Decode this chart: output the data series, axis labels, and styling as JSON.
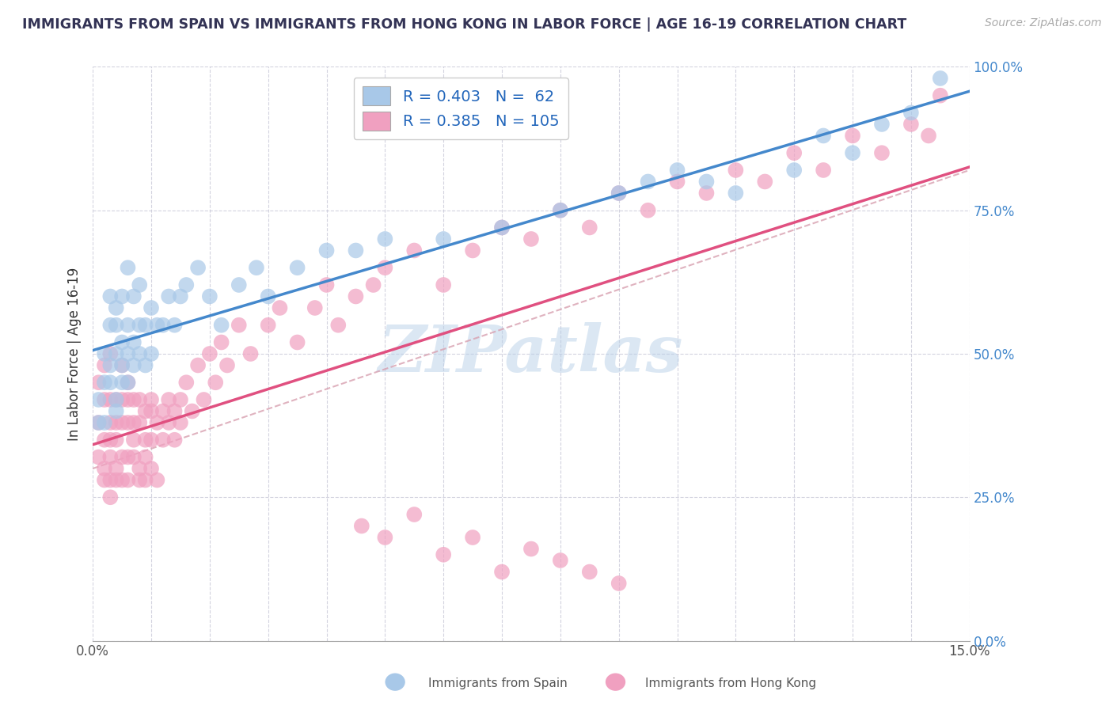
{
  "title": "IMMIGRANTS FROM SPAIN VS IMMIGRANTS FROM HONG KONG IN LABOR FORCE | AGE 16-19 CORRELATION CHART",
  "source": "Source: ZipAtlas.com",
  "ylabel": "In Labor Force | Age 16-19",
  "legend_label1": "Immigrants from Spain",
  "legend_label2": "Immigrants from Hong Kong",
  "R1": 0.403,
  "N1": 62,
  "R2": 0.385,
  "N2": 105,
  "xlim": [
    0.0,
    0.15
  ],
  "ylim": [
    0.0,
    1.0
  ],
  "color_spain": "#a8c8e8",
  "color_hk": "#f0a0c0",
  "color_spain_line": "#4488cc",
  "color_hk_line": "#e05080",
  "color_diag": "#e0a0b0",
  "watermark": "ZIPatlas",
  "spain_x": [
    0.001,
    0.001,
    0.002,
    0.002,
    0.002,
    0.003,
    0.003,
    0.003,
    0.003,
    0.004,
    0.004,
    0.004,
    0.004,
    0.004,
    0.005,
    0.005,
    0.005,
    0.005,
    0.006,
    0.006,
    0.006,
    0.006,
    0.007,
    0.007,
    0.007,
    0.008,
    0.008,
    0.008,
    0.009,
    0.009,
    0.01,
    0.01,
    0.011,
    0.012,
    0.013,
    0.014,
    0.015,
    0.016,
    0.018,
    0.02,
    0.022,
    0.025,
    0.028,
    0.03,
    0.035,
    0.04,
    0.045,
    0.05,
    0.06,
    0.07,
    0.08,
    0.09,
    0.095,
    0.1,
    0.105,
    0.11,
    0.12,
    0.125,
    0.13,
    0.135,
    0.14,
    0.145
  ],
  "spain_y": [
    0.42,
    0.38,
    0.45,
    0.38,
    0.5,
    0.48,
    0.55,
    0.45,
    0.6,
    0.42,
    0.5,
    0.55,
    0.4,
    0.58,
    0.48,
    0.52,
    0.6,
    0.45,
    0.5,
    0.55,
    0.65,
    0.45,
    0.52,
    0.6,
    0.48,
    0.55,
    0.62,
    0.5,
    0.55,
    0.48,
    0.5,
    0.58,
    0.55,
    0.55,
    0.6,
    0.55,
    0.6,
    0.62,
    0.65,
    0.6,
    0.55,
    0.62,
    0.65,
    0.6,
    0.65,
    0.68,
    0.68,
    0.7,
    0.7,
    0.72,
    0.75,
    0.78,
    0.8,
    0.82,
    0.8,
    0.78,
    0.82,
    0.88,
    0.85,
    0.9,
    0.92,
    0.98
  ],
  "hk_x": [
    0.001,
    0.001,
    0.001,
    0.002,
    0.002,
    0.002,
    0.002,
    0.002,
    0.003,
    0.003,
    0.003,
    0.003,
    0.003,
    0.003,
    0.003,
    0.004,
    0.004,
    0.004,
    0.004,
    0.004,
    0.005,
    0.005,
    0.005,
    0.005,
    0.005,
    0.006,
    0.006,
    0.006,
    0.006,
    0.006,
    0.007,
    0.007,
    0.007,
    0.007,
    0.008,
    0.008,
    0.008,
    0.008,
    0.009,
    0.009,
    0.009,
    0.009,
    0.01,
    0.01,
    0.01,
    0.01,
    0.011,
    0.011,
    0.012,
    0.012,
    0.013,
    0.013,
    0.014,
    0.014,
    0.015,
    0.015,
    0.016,
    0.017,
    0.018,
    0.019,
    0.02,
    0.021,
    0.022,
    0.023,
    0.025,
    0.027,
    0.03,
    0.032,
    0.035,
    0.038,
    0.04,
    0.042,
    0.045,
    0.048,
    0.05,
    0.055,
    0.06,
    0.065,
    0.07,
    0.075,
    0.08,
    0.085,
    0.09,
    0.095,
    0.1,
    0.105,
    0.11,
    0.115,
    0.12,
    0.125,
    0.13,
    0.135,
    0.14,
    0.143,
    0.145,
    0.046,
    0.05,
    0.055,
    0.06,
    0.065,
    0.07,
    0.075,
    0.08,
    0.085,
    0.09
  ],
  "hk_y": [
    0.32,
    0.38,
    0.45,
    0.28,
    0.35,
    0.42,
    0.3,
    0.48,
    0.25,
    0.32,
    0.38,
    0.42,
    0.35,
    0.28,
    0.5,
    0.3,
    0.38,
    0.42,
    0.35,
    0.28,
    0.32,
    0.38,
    0.42,
    0.28,
    0.48,
    0.32,
    0.38,
    0.42,
    0.28,
    0.45,
    0.32,
    0.38,
    0.42,
    0.35,
    0.3,
    0.38,
    0.42,
    0.28,
    0.35,
    0.4,
    0.32,
    0.28,
    0.35,
    0.4,
    0.42,
    0.3,
    0.38,
    0.28,
    0.4,
    0.35,
    0.42,
    0.38,
    0.4,
    0.35,
    0.42,
    0.38,
    0.45,
    0.4,
    0.48,
    0.42,
    0.5,
    0.45,
    0.52,
    0.48,
    0.55,
    0.5,
    0.55,
    0.58,
    0.52,
    0.58,
    0.62,
    0.55,
    0.6,
    0.62,
    0.65,
    0.68,
    0.62,
    0.68,
    0.72,
    0.7,
    0.75,
    0.72,
    0.78,
    0.75,
    0.8,
    0.78,
    0.82,
    0.8,
    0.85,
    0.82,
    0.88,
    0.85,
    0.9,
    0.88,
    0.95,
    0.2,
    0.18,
    0.22,
    0.15,
    0.18,
    0.12,
    0.16,
    0.14,
    0.12,
    0.1
  ]
}
